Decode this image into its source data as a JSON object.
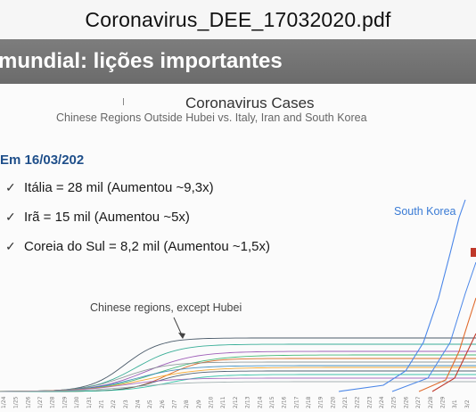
{
  "window": {
    "title": "Coronavirus_DEE_17032020.pdf"
  },
  "slide": {
    "header": "mundial: lições importantes",
    "date_heading": "Em 16/03/202",
    "bullets": [
      {
        "check_icon": "✓",
        "text": "Itália = 28 mil (Aumentou ~9,3x)"
      },
      {
        "check_icon": "✓",
        "text": "Irã = 15 mil (Aumentou ~5x)"
      },
      {
        "check_icon": "✓",
        "text": "Coreia do Sul = 8,2 mil (Aumentou ~1,5x)"
      }
    ]
  },
  "chart_data": {
    "type": "line",
    "title": "Coronavirus Cases",
    "subtitle": "Chinese Regions Outside Hubei vs. Italy, Iran and South Korea",
    "annotations": [
      "Chinese regions, except Hubei",
      "South Korea"
    ],
    "x_tick_labels": [
      "1/24",
      "1/25",
      "1/26",
      "1/27",
      "1/28",
      "1/29",
      "1/30",
      "1/31",
      "2/1",
      "2/2",
      "2/3",
      "2/4",
      "2/5",
      "2/6",
      "2/7",
      "2/8",
      "2/9",
      "2/10",
      "2/11",
      "2/12",
      "2/13",
      "2/14",
      "2/15",
      "2/16",
      "2/17",
      "2/18",
      "2/19",
      "2/20",
      "2/21",
      "2/22",
      "2/23",
      "2/24",
      "2/25",
      "2/26",
      "2/27",
      "2/28",
      "2/29",
      "3/1",
      "3/2"
    ],
    "colors": {
      "south_korea": "#4a86e8",
      "italy": "#e06a2c",
      "iran": "#c0392b",
      "regions": [
        "#2c3e50",
        "#16a085",
        "#8e44ad",
        "#27ae60",
        "#d35400",
        "#7f8c8d",
        "#2980b9",
        "#f39c12",
        "#34495e",
        "#1abc9c",
        "#9b59b6",
        "#95a5a6"
      ]
    }
  }
}
